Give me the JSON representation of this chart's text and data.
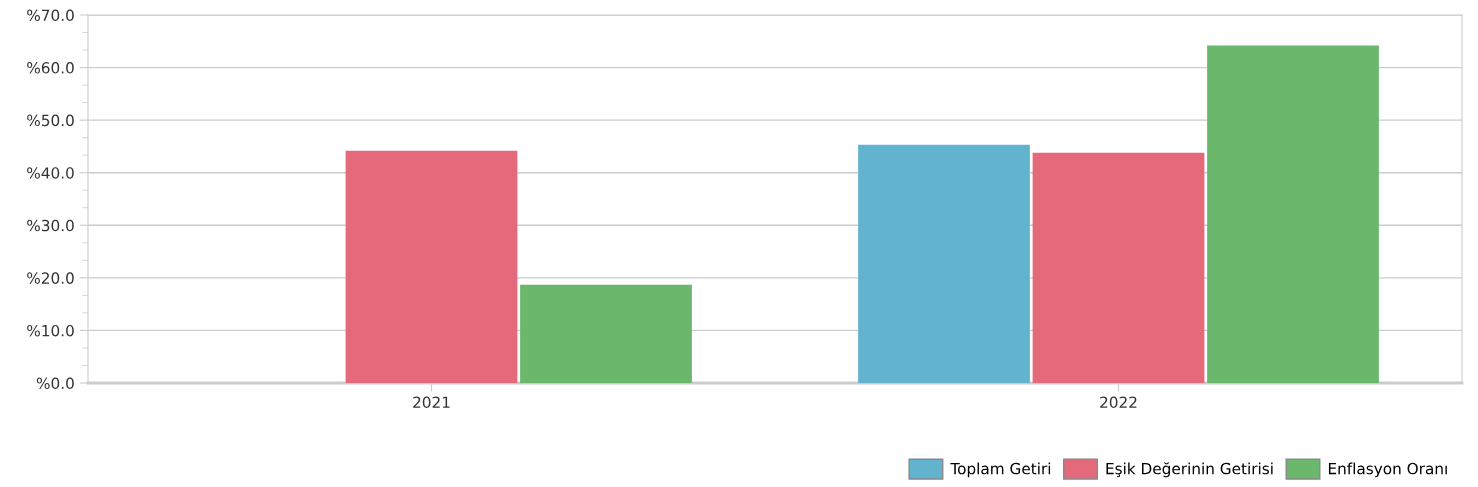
{
  "chart_data": {
    "type": "bar",
    "categories": [
      "2021",
      "2022"
    ],
    "series": [
      {
        "name": "Toplam Getiri",
        "color": "#62b3cd",
        "values": [
          null,
          45.3
        ]
      },
      {
        "name": "Eşik Değerinin Getirisi",
        "color": "#e46a7b",
        "values": [
          44.2,
          43.8
        ]
      },
      {
        "name": "Enflasyon Oranı",
        "color": "#6bb76c",
        "values": [
          18.7,
          64.2
        ]
      }
    ],
    "ylim": [
      0,
      70
    ],
    "yticks": [
      {
        "value": 0,
        "label": "%0.0"
      },
      {
        "value": 10,
        "label": "%10.0"
      },
      {
        "value": 20,
        "label": "%20.0"
      },
      {
        "value": 30,
        "label": "%30.0"
      },
      {
        "value": 40,
        "label": "%40.0"
      },
      {
        "value": 50,
        "label": "%50.0"
      },
      {
        "value": 60,
        "label": "%60.0"
      },
      {
        "value": 70,
        "label": "%70.0"
      }
    ],
    "grid": "y",
    "legend": "bottom right"
  }
}
